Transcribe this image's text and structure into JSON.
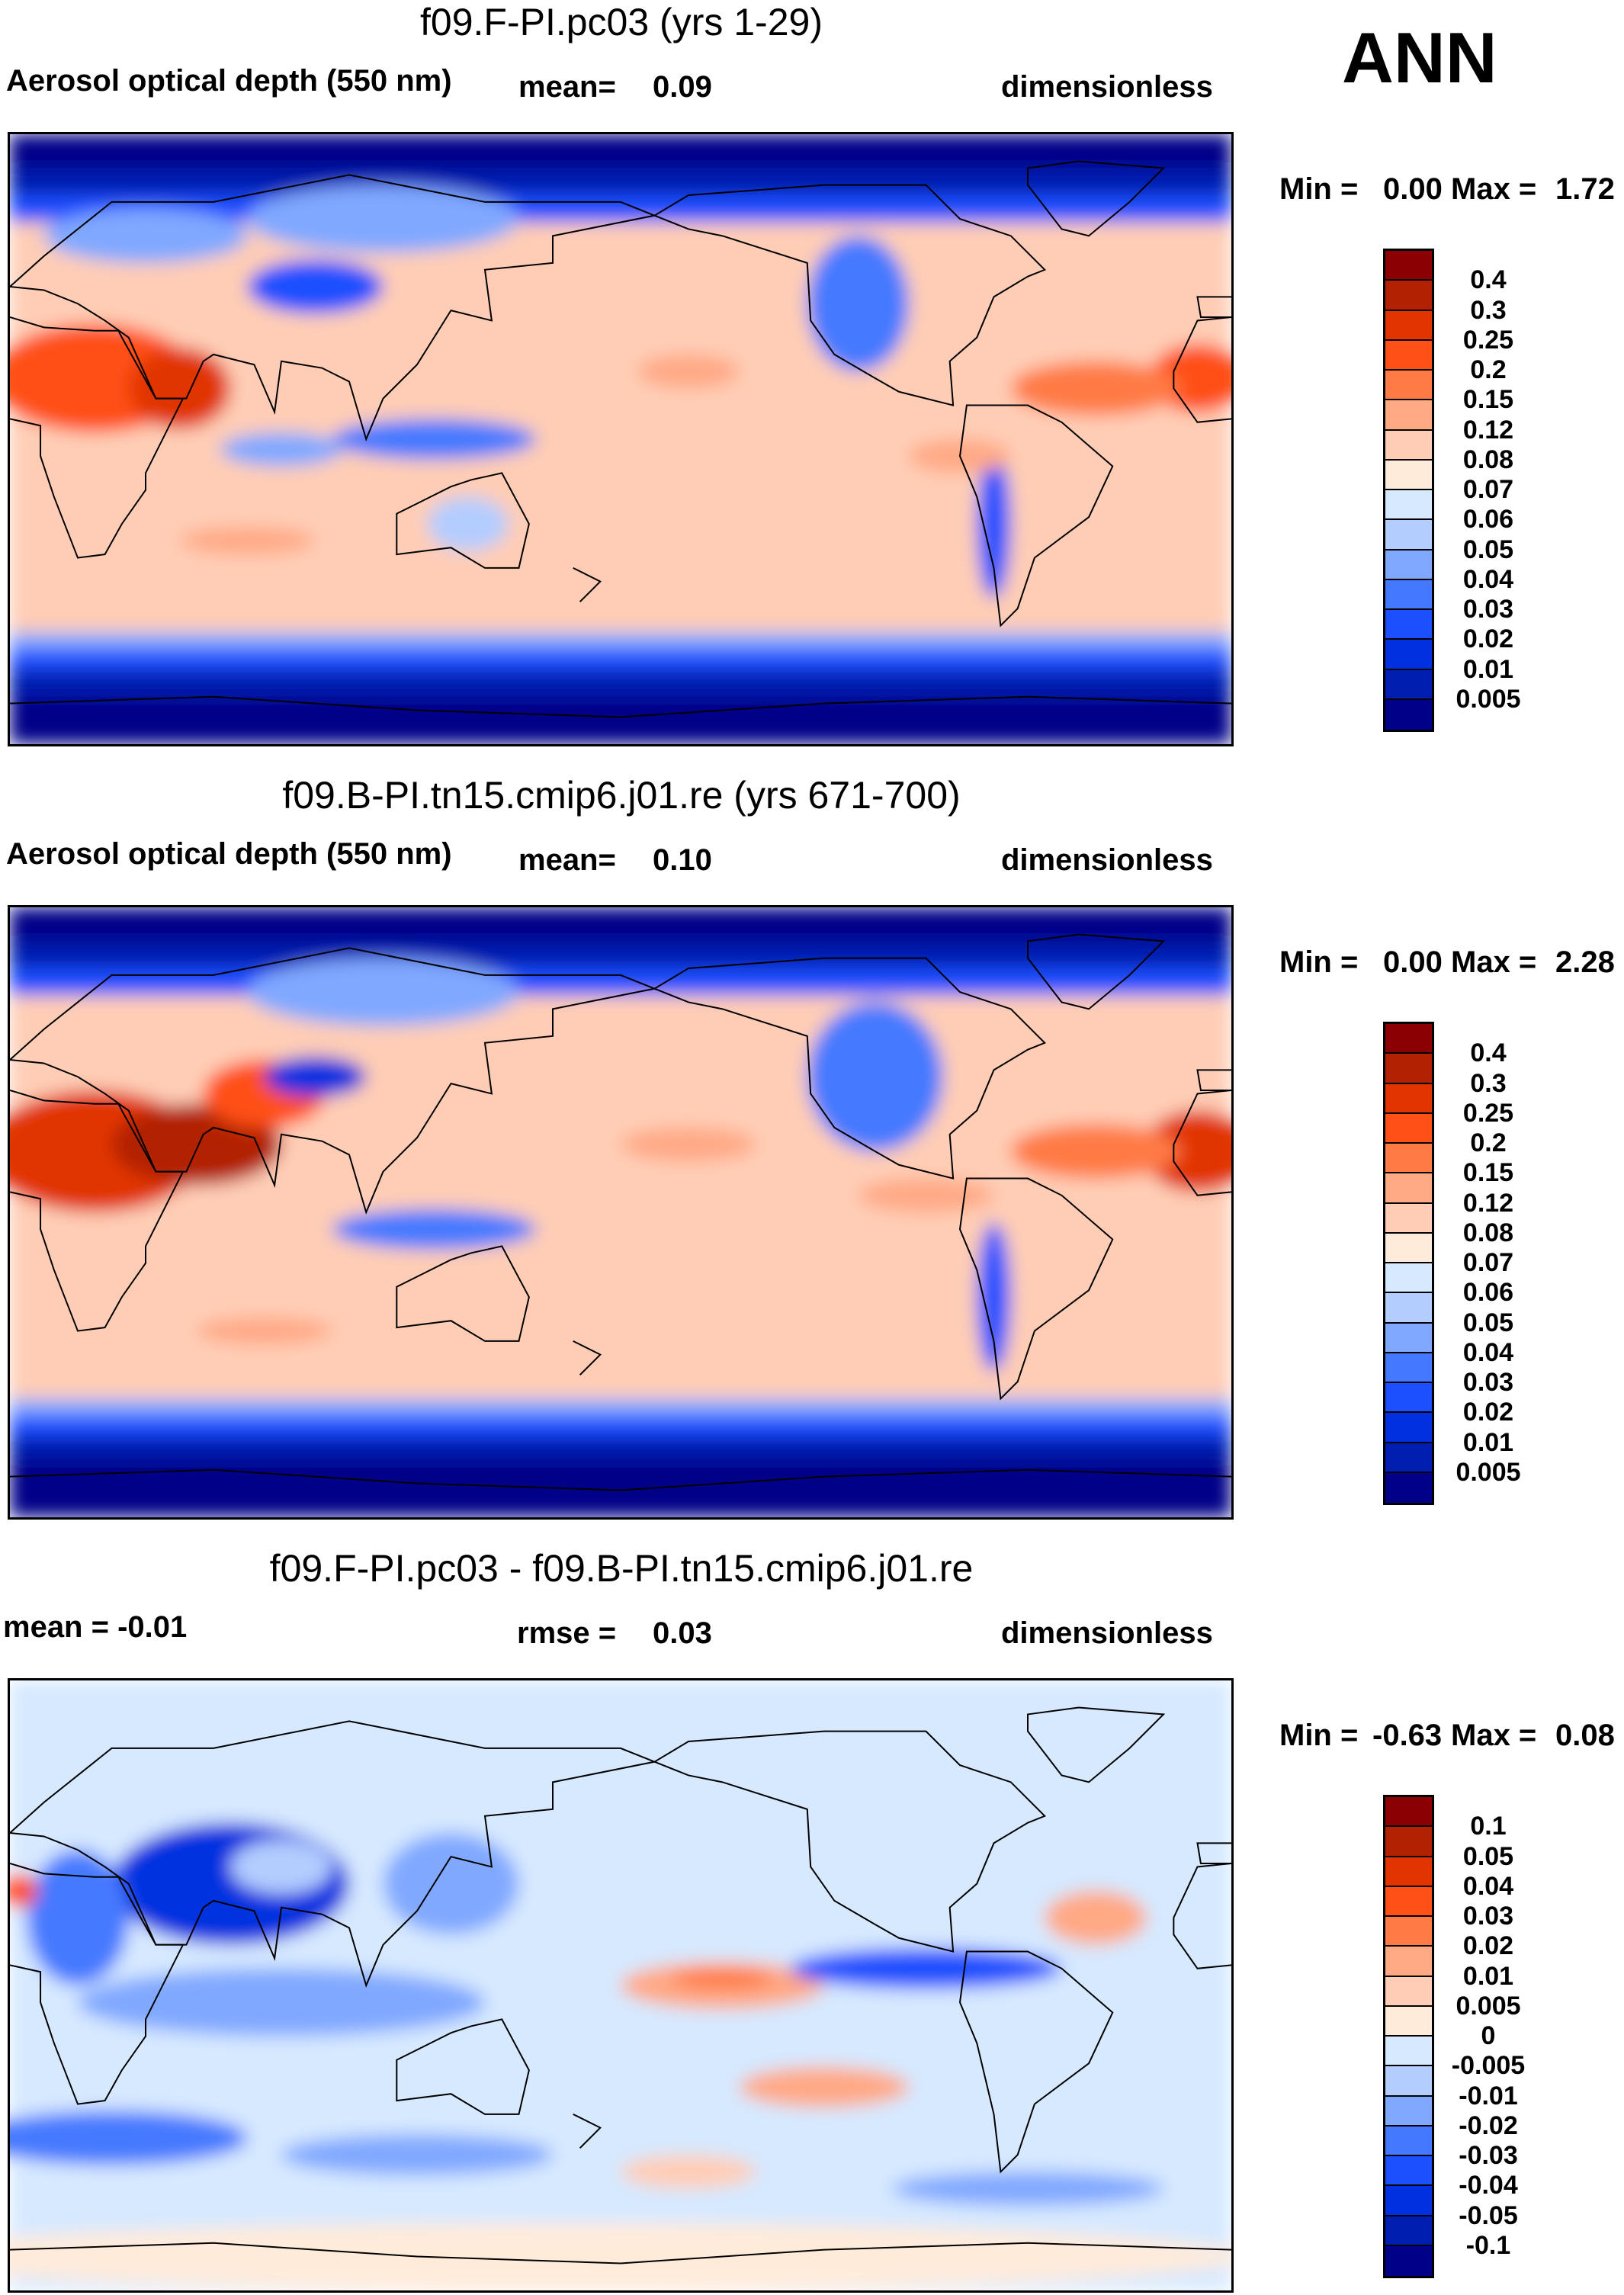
{
  "season": "ANN",
  "panels": [
    {
      "title": "f09.F-PI.pc03 (yrs 1-29)",
      "left_label": "Aerosol optical depth (550 nm)",
      "center_label": "mean=",
      "center_value": "0.09",
      "units": "dimensionless",
      "min_label": "Min =",
      "min_value": "0.00",
      "max_label": "Max =",
      "max_value": "1.72",
      "colorbar_labels": [
        "0.4",
        "0.3",
        "0.25",
        "0.2",
        "0.15",
        "0.12",
        "0.08",
        "0.07",
        "0.06",
        "0.05",
        "0.04",
        "0.03",
        "0.02",
        "0.01",
        "0.005"
      ]
    },
    {
      "title": "f09.B-PI.tn15.cmip6.j01.re (yrs 671-700)",
      "left_label": "Aerosol optical depth (550 nm)",
      "center_label": "mean=",
      "center_value": "0.10",
      "units": "dimensionless",
      "min_label": "Min =",
      "min_value": "0.00",
      "max_label": "Max =",
      "max_value": "2.28",
      "colorbar_labels": [
        "0.4",
        "0.3",
        "0.25",
        "0.2",
        "0.15",
        "0.12",
        "0.08",
        "0.07",
        "0.06",
        "0.05",
        "0.04",
        "0.03",
        "0.02",
        "0.01",
        "0.005"
      ]
    },
    {
      "title": "f09.F-PI.pc03 - f09.B-PI.tn15.cmip6.j01.re",
      "left_label": "mean =  -0.01",
      "center_label": "rmse =",
      "center_value": "0.03",
      "units": "dimensionless",
      "min_label": "Min =",
      "min_value": "-0.63",
      "max_label": "Max =",
      "max_value": "0.08",
      "colorbar_labels": [
        "0.1",
        "0.05",
        "0.04",
        "0.03",
        "0.02",
        "0.01",
        "0.005",
        "0",
        "-0.005",
        "-0.01",
        "-0.02",
        "-0.03",
        "-0.04",
        "-0.05",
        "-0.1"
      ]
    }
  ],
  "colors": [
    "#8b0000",
    "#b22200",
    "#e13400",
    "#ff5017",
    "#ff7a45",
    "#ffa985",
    "#ffcdb5",
    "#ffebda",
    "#d6e9ff",
    "#b3cdff",
    "#80a8ff",
    "#4479ff",
    "#1c50ff",
    "#0030e0",
    "#001eb0",
    "#000088"
  ]
}
